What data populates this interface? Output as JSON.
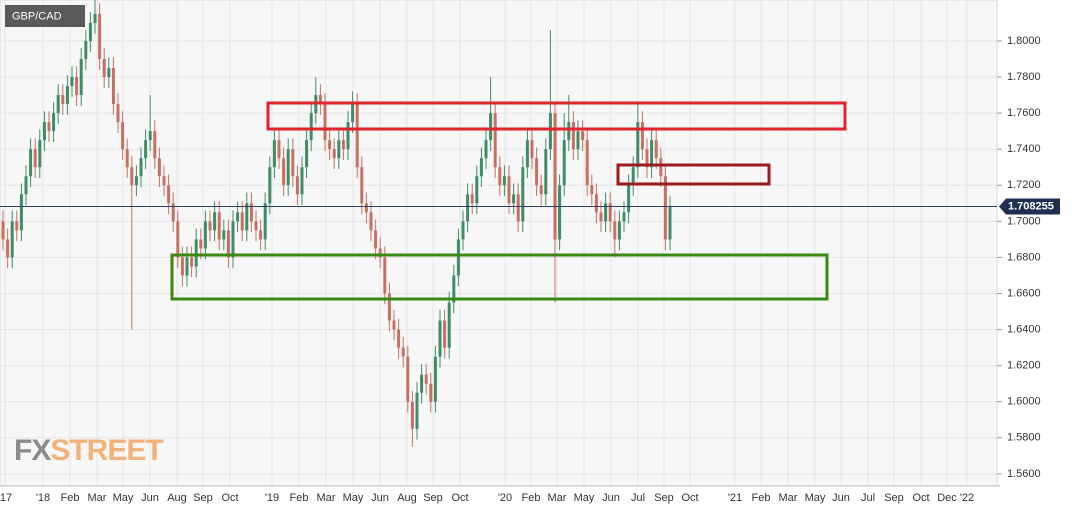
{
  "chart_data": {
    "type": "candlestick",
    "title": "GBP/CAD",
    "watermark": [
      "FX",
      "STREET"
    ],
    "up_color": "#3f8c66",
    "down_color": "#c8705f",
    "ylim": [
      1.5533,
      1.8227
    ],
    "yticks": [
      {
        "value": 1.56,
        "label": "1.5600"
      },
      {
        "value": 1.58,
        "label": "1.5800"
      },
      {
        "value": 1.6,
        "label": "1.6000"
      },
      {
        "value": 1.62,
        "label": "1.6200"
      },
      {
        "value": 1.64,
        "label": "1.6400"
      },
      {
        "value": 1.66,
        "label": "1.6600"
      },
      {
        "value": 1.68,
        "label": "1.6800"
      },
      {
        "value": 1.7,
        "label": "1.7000"
      },
      {
        "value": 1.72,
        "label": "1.7200"
      },
      {
        "value": 1.74,
        "label": "1.7400"
      },
      {
        "value": 1.76,
        "label": "1.7600"
      },
      {
        "value": 1.78,
        "label": "1.7800"
      },
      {
        "value": 1.8,
        "label": "1.8000"
      }
    ],
    "grid": true,
    "x_tick_labels": [
      "'17",
      "'18",
      "Feb",
      "Mar",
      "May",
      "Jun",
      "Aug",
      "Sep",
      "Oct",
      "'19",
      "Feb",
      "Mar",
      "May",
      "Jun",
      "Aug",
      "Sep",
      "Oct",
      "'20",
      "Feb",
      "Mar",
      "May",
      "Jun",
      "Jul",
      "Sep",
      "Oct",
      "'21",
      "Feb",
      "Mar",
      "May",
      "Jun",
      "Jul",
      "Sep",
      "Oct",
      "Dec",
      "'22"
    ],
    "last_price": {
      "value": 1.708255,
      "label": "1.708255"
    },
    "open": [
      1.7,
      1.69,
      1.68,
      1.7,
      1.695,
      1.715,
      1.725,
      1.74,
      1.73,
      1.745,
      1.755,
      1.75,
      1.76,
      1.77,
      1.765,
      1.775,
      1.78,
      1.77,
      1.79,
      1.8,
      1.81,
      1.815,
      1.79,
      1.78,
      1.785,
      1.765,
      1.755,
      1.74,
      1.73,
      1.72,
      1.725,
      1.735,
      1.745,
      1.75,
      1.735,
      1.725,
      1.72,
      1.71,
      1.7,
      1.68,
      1.67,
      1.68,
      1.675,
      1.69,
      1.685,
      1.7,
      1.695,
      1.705,
      1.69,
      1.695,
      1.68,
      1.7,
      1.705,
      1.695,
      1.71,
      1.7,
      1.695,
      1.69,
      1.71,
      1.73,
      1.745,
      1.735,
      1.72,
      1.74,
      1.725,
      1.715,
      1.73,
      1.745,
      1.76,
      1.77,
      1.765,
      1.745,
      1.74,
      1.735,
      1.745,
      1.74,
      1.755,
      1.765,
      1.73,
      1.71,
      1.705,
      1.695,
      1.685,
      1.68,
      1.66,
      1.645,
      1.64,
      1.63,
      1.625,
      1.6,
      1.585,
      1.605,
      1.615,
      1.61,
      1.6,
      1.625,
      1.645,
      1.63,
      1.655,
      1.67,
      1.69,
      1.7,
      1.715,
      1.71,
      1.725,
      1.735,
      1.745,
      1.76,
      1.73,
      1.72,
      1.725,
      1.71,
      1.715,
      1.7,
      1.73,
      1.745,
      1.735,
      1.72,
      1.715,
      1.74,
      1.76,
      1.69,
      1.72,
      1.745,
      1.755,
      1.74,
      1.75,
      1.745,
      1.72,
      1.715,
      1.705,
      1.7,
      1.71,
      1.7,
      1.69,
      1.7,
      1.705,
      1.72,
      1.73,
      1.755,
      1.74,
      1.73,
      1.745,
      1.735,
      1.725,
      1.69
    ],
    "high": [
      1.706,
      1.696,
      1.706,
      1.706,
      1.721,
      1.731,
      1.746,
      1.746,
      1.751,
      1.761,
      1.761,
      1.766,
      1.776,
      1.776,
      1.781,
      1.786,
      1.786,
      1.796,
      1.806,
      1.816,
      1.83,
      1.821,
      1.796,
      1.791,
      1.791,
      1.771,
      1.761,
      1.746,
      1.736,
      1.731,
      1.741,
      1.751,
      1.77,
      1.756,
      1.741,
      1.731,
      1.726,
      1.716,
      1.706,
      1.686,
      1.686,
      1.686,
      1.696,
      1.696,
      1.706,
      1.706,
      1.711,
      1.711,
      1.701,
      1.701,
      1.706,
      1.711,
      1.711,
      1.716,
      1.716,
      1.706,
      1.701,
      1.716,
      1.736,
      1.751,
      1.751,
      1.741,
      1.746,
      1.746,
      1.731,
      1.736,
      1.751,
      1.766,
      1.78,
      1.776,
      1.771,
      1.751,
      1.746,
      1.751,
      1.751,
      1.761,
      1.772,
      1.771,
      1.736,
      1.716,
      1.711,
      1.701,
      1.691,
      1.686,
      1.666,
      1.651,
      1.646,
      1.636,
      1.631,
      1.606,
      1.611,
      1.621,
      1.621,
      1.616,
      1.631,
      1.651,
      1.651,
      1.661,
      1.676,
      1.696,
      1.706,
      1.721,
      1.721,
      1.731,
      1.741,
      1.751,
      1.78,
      1.766,
      1.736,
      1.731,
      1.731,
      1.721,
      1.721,
      1.736,
      1.751,
      1.751,
      1.741,
      1.726,
      1.746,
      1.806,
      1.766,
      1.726,
      1.76,
      1.77,
      1.761,
      1.756,
      1.756,
      1.751,
      1.726,
      1.721,
      1.711,
      1.716,
      1.716,
      1.706,
      1.706,
      1.711,
      1.726,
      1.736,
      1.766,
      1.761,
      1.746,
      1.751,
      1.751,
      1.741,
      1.731,
      1.714
    ],
    "low": [
      1.684,
      1.674,
      1.674,
      1.689,
      1.689,
      1.709,
      1.719,
      1.724,
      1.724,
      1.739,
      1.744,
      1.744,
      1.754,
      1.759,
      1.759,
      1.769,
      1.764,
      1.764,
      1.784,
      1.794,
      1.804,
      1.784,
      1.774,
      1.774,
      1.759,
      1.749,
      1.734,
      1.724,
      1.64,
      1.714,
      1.719,
      1.729,
      1.739,
      1.729,
      1.719,
      1.714,
      1.704,
      1.694,
      1.674,
      1.664,
      1.664,
      1.669,
      1.669,
      1.679,
      1.679,
      1.689,
      1.689,
      1.684,
      1.684,
      1.674,
      1.674,
      1.694,
      1.689,
      1.689,
      1.694,
      1.689,
      1.684,
      1.684,
      1.704,
      1.724,
      1.729,
      1.714,
      1.714,
      1.719,
      1.709,
      1.709,
      1.724,
      1.739,
      1.754,
      1.759,
      1.739,
      1.734,
      1.729,
      1.729,
      1.734,
      1.734,
      1.749,
      1.724,
      1.704,
      1.699,
      1.689,
      1.679,
      1.674,
      1.654,
      1.639,
      1.634,
      1.624,
      1.619,
      1.594,
      1.575,
      1.579,
      1.599,
      1.604,
      1.594,
      1.594,
      1.619,
      1.624,
      1.624,
      1.649,
      1.664,
      1.684,
      1.694,
      1.704,
      1.704,
      1.719,
      1.729,
      1.739,
      1.724,
      1.714,
      1.714,
      1.704,
      1.704,
      1.694,
      1.694,
      1.724,
      1.729,
      1.714,
      1.709,
      1.709,
      1.734,
      1.655,
      1.684,
      1.714,
      1.739,
      1.734,
      1.734,
      1.739,
      1.714,
      1.709,
      1.699,
      1.694,
      1.694,
      1.694,
      1.68,
      1.684,
      1.694,
      1.699,
      1.714,
      1.724,
      1.734,
      1.724,
      1.724,
      1.729,
      1.719,
      1.684,
      1.684
    ],
    "close": [
      1.69,
      1.68,
      1.7,
      1.695,
      1.715,
      1.725,
      1.74,
      1.73,
      1.745,
      1.755,
      1.75,
      1.76,
      1.77,
      1.765,
      1.775,
      1.78,
      1.77,
      1.79,
      1.8,
      1.81,
      1.815,
      1.79,
      1.78,
      1.785,
      1.765,
      1.755,
      1.74,
      1.73,
      1.72,
      1.725,
      1.735,
      1.745,
      1.75,
      1.735,
      1.725,
      1.72,
      1.71,
      1.7,
      1.68,
      1.67,
      1.68,
      1.675,
      1.69,
      1.685,
      1.7,
      1.695,
      1.705,
      1.69,
      1.695,
      1.68,
      1.7,
      1.705,
      1.695,
      1.71,
      1.7,
      1.695,
      1.69,
      1.71,
      1.73,
      1.745,
      1.735,
      1.72,
      1.74,
      1.725,
      1.715,
      1.73,
      1.745,
      1.76,
      1.77,
      1.765,
      1.745,
      1.74,
      1.735,
      1.745,
      1.74,
      1.755,
      1.765,
      1.73,
      1.71,
      1.705,
      1.695,
      1.685,
      1.68,
      1.66,
      1.645,
      1.64,
      1.63,
      1.625,
      1.6,
      1.585,
      1.605,
      1.615,
      1.61,
      1.6,
      1.625,
      1.645,
      1.63,
      1.655,
      1.67,
      1.69,
      1.7,
      1.715,
      1.71,
      1.725,
      1.735,
      1.745,
      1.76,
      1.73,
      1.72,
      1.725,
      1.71,
      1.715,
      1.7,
      1.73,
      1.745,
      1.735,
      1.72,
      1.715,
      1.74,
      1.76,
      1.69,
      1.72,
      1.745,
      1.755,
      1.74,
      1.75,
      1.745,
      1.72,
      1.715,
      1.705,
      1.7,
      1.71,
      1.7,
      1.69,
      1.7,
      1.705,
      1.72,
      1.73,
      1.755,
      1.74,
      1.73,
      1.745,
      1.735,
      1.725,
      1.69,
      1.708
    ]
  }
}
